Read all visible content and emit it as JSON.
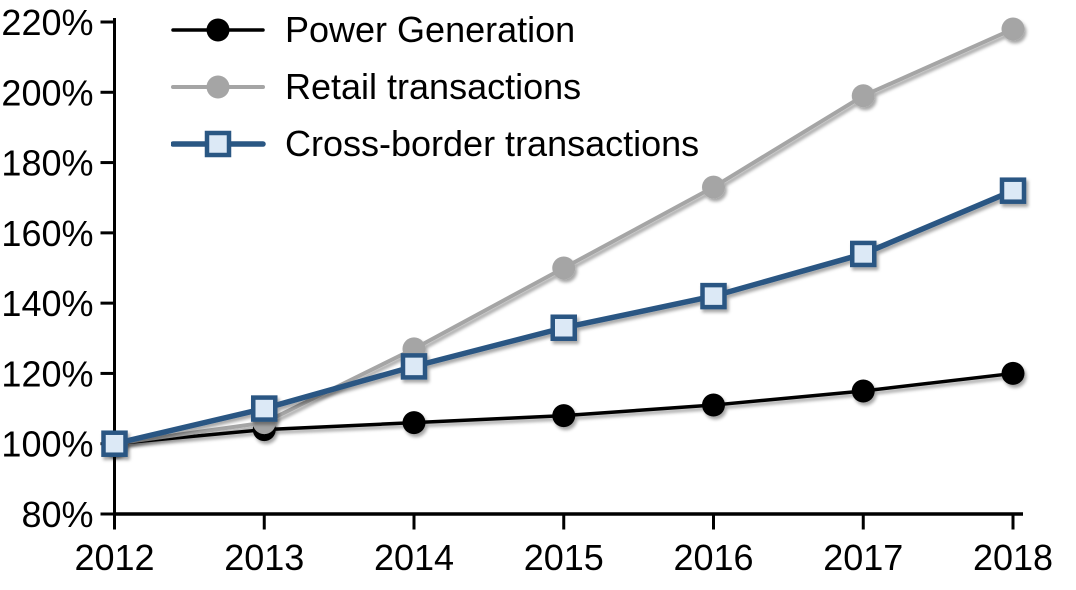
{
  "chart_data": {
    "type": "line",
    "title": "",
    "x": [
      2012,
      2013,
      2014,
      2015,
      2016,
      2017,
      2018
    ],
    "xtick_labels": [
      "2012",
      "2013",
      "2014",
      "2015",
      "2016",
      "2017",
      "2018"
    ],
    "ylim": [
      80,
      220
    ],
    "ytick_step": 20,
    "ytick_labels": [
      "80%",
      "100%",
      "120%",
      "140%",
      "160%",
      "180%",
      "200%",
      "220%"
    ],
    "grid": false,
    "legend_position": "top-left-inside",
    "axis_color": "#000000",
    "text_color": "#000000",
    "background_color": "#ffffff",
    "series": [
      {
        "name": "Power Generation",
        "color": "#000000",
        "marker": "circle",
        "marker_fill": "#000000",
        "line_width": 3.5,
        "values": [
          100,
          104,
          106,
          108,
          111,
          115,
          120
        ]
      },
      {
        "name": "Retail transactions",
        "color": "#a5a5a5",
        "marker": "circle",
        "marker_fill": "#a5a5a5",
        "line_width": 4,
        "values": [
          100,
          106,
          127,
          150,
          173,
          199,
          218
        ]
      },
      {
        "name": "Cross-border transactions",
        "color": "#2a5783",
        "marker": "square",
        "marker_fill": "#dce9f6",
        "line_width": 5.5,
        "values": [
          100,
          110,
          122,
          133,
          142,
          154,
          172
        ]
      }
    ]
  }
}
